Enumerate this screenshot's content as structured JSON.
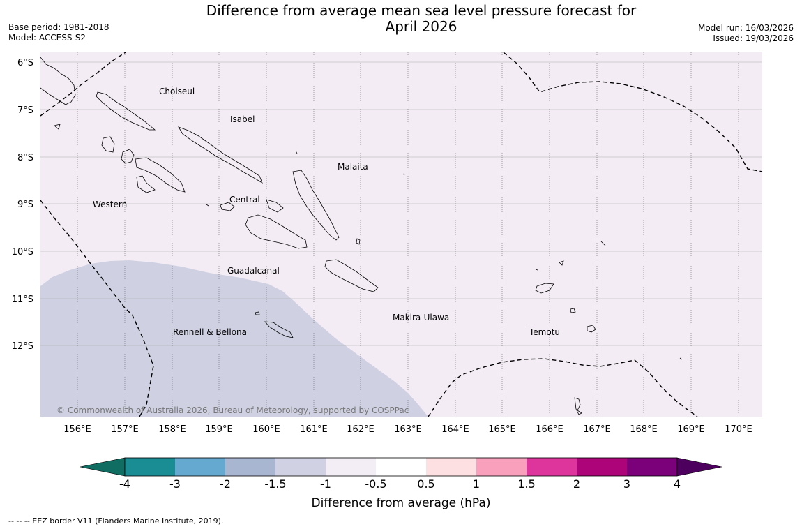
{
  "title": {
    "line1": "Difference from average mean sea level pressure forecast for",
    "line2": "April 2026"
  },
  "meta_left": {
    "base_period": "Base period: 1981-2018",
    "model": "Model: ACCESS-S2"
  },
  "meta_right": {
    "model_run": "Model run: 16/03/2026",
    "issued": "Issued: 19/03/2026"
  },
  "map": {
    "lat_labels": [
      "6°S",
      "7°S",
      "8°S",
      "9°S",
      "10°S",
      "11°S",
      "12°S"
    ],
    "lon_labels": [
      "156°E",
      "157°E",
      "158°E",
      "159°E",
      "160°E",
      "161°E",
      "162°E",
      "163°E",
      "164°E",
      "165°E",
      "166°E",
      "167°E",
      "168°E",
      "169°E",
      "170°E"
    ],
    "provinces": [
      "Choiseul",
      "Isabel",
      "Malaita",
      "Western",
      "Central",
      "Guadalcanal",
      "Makira-Ulawa",
      "Rennell & Bellona",
      "Temotu"
    ],
    "copyright": "© Commonwealth of Australia 2026, Bureau of Meteorology, supported by COSPPac",
    "colors": {
      "background_field": "#f3ecf4",
      "anomaly_region": "#cfd1e3"
    }
  },
  "colorbar": {
    "ticks": [
      "-4",
      "-3",
      "-2",
      "-1.5",
      "-1",
      "-0.5",
      "0.5",
      "1",
      "1.5",
      "2",
      "3",
      "4"
    ],
    "colors": [
      "#1a8d94",
      "#65a8d0",
      "#a8b6d2",
      "#d0d1e3",
      "#f3eef6",
      "#ffffff",
      "#fde0e1",
      "#f8a0bc",
      "#dd359b",
      "#ad0479",
      "#7a0179"
    ],
    "extend_low": "#106d62",
    "extend_high": "#4d005e",
    "title": "Difference from average (hPa)"
  },
  "footnote": "--  --  -- EEZ border V11 (Flanders Marine Institute, 2019)."
}
